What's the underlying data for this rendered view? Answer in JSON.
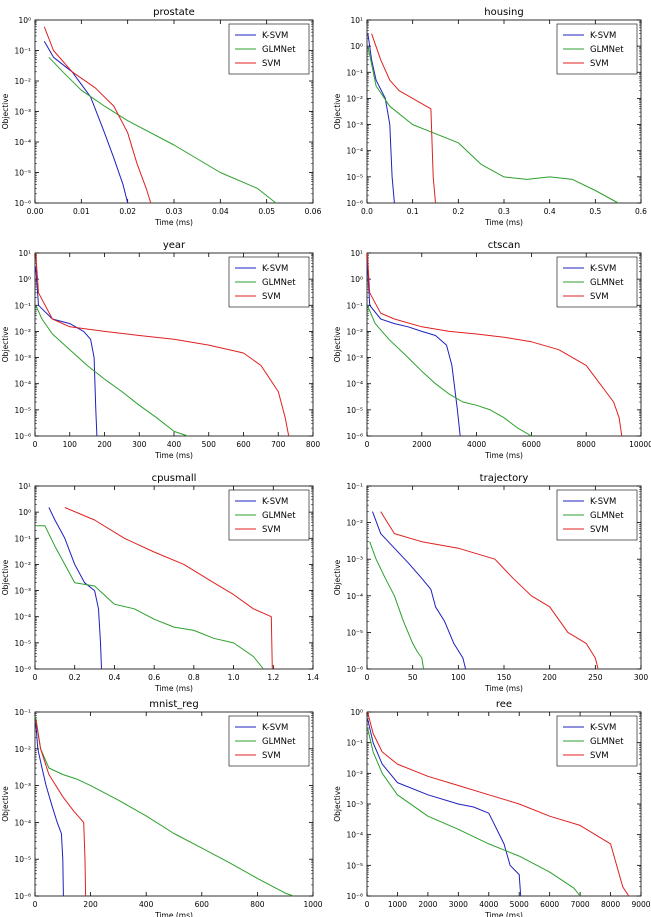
{
  "chart_data": [
    {
      "type": "line",
      "title": "prostate",
      "xlabel": "Time (ms)",
      "ylabel": "Objective",
      "xlim": [
        0,
        0.06
      ],
      "xticks": [
        0,
        0.01,
        0.02,
        0.03,
        0.04,
        0.05,
        0.06
      ],
      "xtick_labels": [
        "0.00",
        "0.01",
        "0.02",
        "0.03",
        "0.04",
        "0.05",
        "0.06"
      ],
      "yscale": "log",
      "ylim_exp": [
        -6,
        0
      ],
      "legend": [
        "K-SVM",
        "GLMNet",
        "SVM"
      ],
      "legend_position": "top-right",
      "series": [
        {
          "name": "K-SVM",
          "color": "#1f1fbf",
          "x": [
            0.002,
            0.004,
            0.008,
            0.012,
            0.015,
            0.017,
            0.019,
            0.02
          ],
          "y": [
            0.2,
            0.06,
            0.02,
            0.003,
            0.0002,
            3e-05,
            4e-06,
            1e-06
          ]
        },
        {
          "name": "GLMNet",
          "color": "#2ca02c",
          "x": [
            0.003,
            0.006,
            0.01,
            0.015,
            0.02,
            0.03,
            0.04,
            0.048,
            0.052
          ],
          "y": [
            0.06,
            0.02,
            0.005,
            0.0015,
            0.0005,
            8e-05,
            1e-05,
            3e-06,
            1e-06
          ]
        },
        {
          "name": "SVM",
          "color": "#e02020",
          "x": [
            0.002,
            0.004,
            0.008,
            0.013,
            0.017,
            0.02,
            0.022,
            0.024,
            0.025
          ],
          "y": [
            0.6,
            0.1,
            0.02,
            0.006,
            0.0015,
            0.0002,
            2e-05,
            3e-06,
            1e-06
          ]
        }
      ]
    },
    {
      "type": "line",
      "title": "housing",
      "xlabel": "Time (ms)",
      "ylabel": "Objective",
      "xlim": [
        0,
        0.6
      ],
      "xticks": [
        0,
        0.1,
        0.2,
        0.3,
        0.4,
        0.5,
        0.6
      ],
      "xtick_labels": [
        "0.0",
        "0.1",
        "0.2",
        "0.3",
        "0.4",
        "0.5",
        "0.6"
      ],
      "yscale": "log",
      "ylim_exp": [
        -6,
        1
      ],
      "legend": [
        "K-SVM",
        "GLMNet",
        "SVM"
      ],
      "legend_position": "top-right",
      "series": [
        {
          "name": "K-SVM",
          "color": "#1f1fbf",
          "x": [
            0.002,
            0.01,
            0.02,
            0.04,
            0.05,
            0.055,
            0.06
          ],
          "y": [
            3,
            0.3,
            0.05,
            0.01,
            0.001,
            1e-05,
            1e-06
          ]
        },
        {
          "name": "GLMNet",
          "color": "#2ca02c",
          "x": [
            0.002,
            0.02,
            0.05,
            0.1,
            0.2,
            0.25,
            0.3,
            0.35,
            0.4,
            0.45,
            0.5,
            0.55
          ],
          "y": [
            1,
            0.03,
            0.005,
            0.001,
            0.0002,
            3e-05,
            1e-05,
            8e-06,
            1e-05,
            8e-06,
            3e-06,
            1e-06
          ]
        },
        {
          "name": "SVM",
          "color": "#e02020",
          "x": [
            0.01,
            0.03,
            0.05,
            0.07,
            0.1,
            0.13,
            0.14,
            0.145,
            0.15
          ],
          "y": [
            3,
            0.3,
            0.05,
            0.02,
            0.01,
            0.005,
            0.004,
            1e-05,
            1e-06
          ]
        }
      ]
    },
    {
      "type": "line",
      "title": "year",
      "xlabel": "Time (ms)",
      "ylabel": "Objective",
      "xlim": [
        0,
        800
      ],
      "xticks": [
        0,
        100,
        200,
        300,
        400,
        500,
        600,
        700,
        800
      ],
      "xtick_labels": [
        "0",
        "100",
        "200",
        "300",
        "400",
        "500",
        "600",
        "700",
        "800"
      ],
      "yscale": "log",
      "ylim_exp": [
        -6,
        1
      ],
      "legend": [
        "K-SVM",
        "GLMNet",
        "SVM"
      ],
      "legend_position": "top-right",
      "series": [
        {
          "name": "K-SVM",
          "color": "#1f1fbf",
          "x": [
            2,
            10,
            50,
            100,
            140,
            160,
            170,
            175,
            178
          ],
          "y": [
            3,
            0.1,
            0.03,
            0.02,
            0.01,
            0.005,
            0.001,
            1e-05,
            1e-06
          ]
        },
        {
          "name": "GLMNet",
          "color": "#2ca02c",
          "x": [
            2,
            20,
            50,
            100,
            150,
            200,
            250,
            300,
            350,
            400,
            440
          ],
          "y": [
            0.1,
            0.03,
            0.008,
            0.002,
            0.0005,
            0.00015,
            5e-05,
            1.5e-05,
            5e-06,
            1.5e-06,
            1e-06
          ]
        },
        {
          "name": "SVM",
          "color": "#e02020",
          "x": [
            2,
            10,
            50,
            100,
            200,
            300,
            400,
            500,
            600,
            650,
            700,
            720,
            730
          ],
          "y": [
            10,
            0.3,
            0.03,
            0.015,
            0.01,
            0.007,
            0.005,
            0.003,
            0.0015,
            0.0005,
            5e-05,
            5e-06,
            1e-06
          ]
        }
      ]
    },
    {
      "type": "line",
      "title": "ctscan",
      "xlabel": "Time (ms)",
      "ylabel": "Objective",
      "xlim": [
        0,
        10000
      ],
      "xticks": [
        0,
        2000,
        4000,
        6000,
        8000,
        10000
      ],
      "xtick_labels": [
        "0",
        "2000",
        "4000",
        "6000",
        "8000",
        "10000"
      ],
      "yscale": "log",
      "ylim_exp": [
        -6,
        1
      ],
      "legend": [
        "K-SVM",
        "GLMNet",
        "SVM"
      ],
      "legend_position": "top-right",
      "series": [
        {
          "name": "K-SVM",
          "color": "#1f1fbf",
          "x": [
            10,
            100,
            500,
            1000,
            1500,
            2000,
            2500,
            2900,
            3100,
            3300,
            3400
          ],
          "y": [
            5,
            0.1,
            0.03,
            0.02,
            0.015,
            0.01,
            0.007,
            0.003,
            0.0005,
            1e-05,
            1e-06
          ]
        },
        {
          "name": "GLMNet",
          "color": "#2ca02c",
          "x": [
            10,
            300,
            800,
            1500,
            2000,
            2500,
            3000,
            3500,
            4000,
            4500,
            5000,
            5500,
            6000
          ],
          "y": [
            0.1,
            0.02,
            0.005,
            0.001,
            0.0003,
            0.0001,
            4e-05,
            2e-05,
            1.5e-05,
            1e-05,
            5e-06,
            2e-06,
            1e-06
          ]
        },
        {
          "name": "SVM",
          "color": "#e02020",
          "x": [
            10,
            100,
            500,
            1000,
            2000,
            3000,
            4000,
            5000,
            6000,
            7000,
            8000,
            8500,
            9000,
            9200,
            9300
          ],
          "y": [
            10,
            0.3,
            0.05,
            0.03,
            0.015,
            0.01,
            0.008,
            0.006,
            0.004,
            0.002,
            0.0005,
            0.0001,
            2e-05,
            5e-06,
            1e-06
          ]
        }
      ]
    },
    {
      "type": "line",
      "title": "cpusmall",
      "xlabel": "Time (ms)",
      "ylabel": "Objective",
      "xlim": [
        0,
        1.4
      ],
      "xticks": [
        0,
        0.2,
        0.4,
        0.6,
        0.8,
        1.0,
        1.2,
        1.4
      ],
      "xtick_labels": [
        "0",
        "0.2",
        "0.4",
        "0.6",
        "0.8",
        "1.0",
        "1.2",
        "1.4"
      ],
      "yscale": "log",
      "ylim_exp": [
        -6,
        1
      ],
      "legend": [
        "K-SVM",
        "GLMNet",
        "SVM"
      ],
      "legend_position": "top-right",
      "series": [
        {
          "name": "K-SVM",
          "color": "#1f1fbf",
          "x": [
            0.07,
            0.1,
            0.15,
            0.2,
            0.25,
            0.3,
            0.32,
            0.33,
            0.335
          ],
          "y": [
            1.5,
            0.5,
            0.1,
            0.01,
            0.002,
            0.001,
            0.0002,
            1e-05,
            1e-06
          ]
        },
        {
          "name": "GLMNet",
          "color": "#2ca02c",
          "x": [
            0.01,
            0.05,
            0.1,
            0.15,
            0.2,
            0.3,
            0.4,
            0.5,
            0.6,
            0.7,
            0.8,
            0.9,
            1.0,
            1.1,
            1.15
          ],
          "y": [
            0.3,
            0.3,
            0.05,
            0.01,
            0.002,
            0.0015,
            0.0003,
            0.0002,
            8e-05,
            4e-05,
            3e-05,
            1.5e-05,
            1e-05,
            3e-06,
            1e-06
          ]
        },
        {
          "name": "SVM",
          "color": "#e02020",
          "x": [
            0.15,
            0.3,
            0.45,
            0.6,
            0.75,
            0.9,
            1.0,
            1.1,
            1.19,
            1.195
          ],
          "y": [
            1.5,
            0.5,
            0.1,
            0.03,
            0.01,
            0.002,
            0.0007,
            0.0002,
            0.0001,
            1e-06
          ]
        }
      ]
    },
    {
      "type": "line",
      "title": "trajectory",
      "xlabel": "Time (ms)",
      "ylabel": "Objective",
      "xlim": [
        0,
        300
      ],
      "xticks": [
        0,
        50,
        100,
        150,
        200,
        250,
        300
      ],
      "xtick_labels": [
        "0",
        "50",
        "100",
        "150",
        "200",
        "250",
        "300"
      ],
      "yscale": "log",
      "ylim_exp": [
        -6,
        -1
      ],
      "legend": [
        "K-SVM",
        "GLMNet",
        "SVM"
      ],
      "legend_position": "top-right",
      "series": [
        {
          "name": "K-SVM",
          "color": "#1f1fbf",
          "x": [
            6,
            15,
            30,
            45,
            60,
            70,
            75,
            85,
            95,
            105,
            108
          ],
          "y": [
            0.02,
            0.005,
            0.002,
            0.0008,
            0.0003,
            0.00015,
            5e-05,
            2e-05,
            5e-06,
            2e-06,
            1e-06
          ]
        },
        {
          "name": "GLMNet",
          "color": "#2ca02c",
          "x": [
            3,
            10,
            20,
            30,
            40,
            50,
            55,
            60,
            62
          ],
          "y": [
            0.003,
            0.001,
            0.0003,
            0.0001,
            2e-05,
            5e-06,
            3e-06,
            2e-06,
            1e-06
          ]
        },
        {
          "name": "SVM",
          "color": "#e02020",
          "x": [
            15,
            30,
            60,
            100,
            140,
            160,
            180,
            200,
            220,
            240,
            250,
            253
          ],
          "y": [
            0.02,
            0.005,
            0.003,
            0.002,
            0.001,
            0.0003,
            0.0001,
            5e-05,
            1e-05,
            5e-06,
            2e-06,
            1e-06
          ]
        }
      ]
    },
    {
      "type": "line",
      "title": "mnist_reg",
      "xlabel": "Time (ms)",
      "ylabel": "Objective",
      "xlim": [
        0,
        1000
      ],
      "xticks": [
        0,
        200,
        400,
        600,
        800,
        1000
      ],
      "xtick_labels": [
        "0",
        "200",
        "400",
        "600",
        "800",
        "1000"
      ],
      "yscale": "log",
      "ylim_exp": [
        -6,
        -1
      ],
      "legend": [
        "K-SVM",
        "GLMNet",
        "SVM"
      ],
      "legend_position": "top-right",
      "series": [
        {
          "name": "K-SVM",
          "color": "#1f1fbf",
          "x": [
            3,
            10,
            25,
            40,
            60,
            80,
            95,
            100,
            102
          ],
          "y": [
            0.05,
            0.01,
            0.003,
            0.001,
            0.0003,
            0.0001,
            5e-05,
            1e-05,
            1e-06
          ]
        },
        {
          "name": "GLMNet",
          "color": "#2ca02c",
          "x": [
            3,
            20,
            50,
            100,
            150,
            200,
            300,
            400,
            500,
            600,
            700,
            800,
            900,
            930
          ],
          "y": [
            0.07,
            0.01,
            0.003,
            0.002,
            0.0015,
            0.001,
            0.0004,
            0.00015,
            5e-05,
            2e-05,
            8e-06,
            3e-06,
            1.2e-06,
            1e-06
          ]
        },
        {
          "name": "SVM",
          "color": "#e02020",
          "x": [
            3,
            20,
            50,
            100,
            140,
            175,
            180,
            182
          ],
          "y": [
            0.06,
            0.01,
            0.002,
            0.0005,
            0.0002,
            0.0001,
            1e-05,
            1e-06
          ]
        }
      ]
    },
    {
      "type": "line",
      "title": "ree",
      "xlabel": "Time (ms)",
      "ylabel": "Objective",
      "xlim": [
        0,
        9000
      ],
      "xticks": [
        0,
        1000,
        2000,
        3000,
        4000,
        5000,
        6000,
        7000,
        8000,
        9000
      ],
      "xtick_labels": [
        "0",
        "1000",
        "2000",
        "3000",
        "4000",
        "5000",
        "6000",
        "7000",
        "8000",
        "9000"
      ],
      "yscale": "log",
      "ylim_exp": [
        -6,
        0
      ],
      "legend": [
        "K-SVM",
        "GLMNet",
        "SVM"
      ],
      "legend_position": "top-right",
      "series": [
        {
          "name": "K-SVM",
          "color": "#1f1fbf",
          "x": [
            20,
            200,
            500,
            1000,
            2000,
            3000,
            3500,
            4000,
            4500,
            4700,
            5000,
            5050
          ],
          "y": [
            0.6,
            0.1,
            0.02,
            0.005,
            0.002,
            0.001,
            0.0008,
            0.0005,
            5e-05,
            1e-05,
            5e-06,
            1e-06
          ]
        },
        {
          "name": "GLMNet",
          "color": "#2ca02c",
          "x": [
            20,
            200,
            500,
            1000,
            2000,
            3000,
            4000,
            5000,
            6000,
            6800,
            7000
          ],
          "y": [
            0.3,
            0.05,
            0.01,
            0.002,
            0.0004,
            0.00015,
            5e-05,
            2e-05,
            6e-06,
            1.8e-06,
            1e-06
          ]
        },
        {
          "name": "SVM",
          "color": "#e02020",
          "x": [
            20,
            200,
            500,
            1000,
            2000,
            3000,
            4000,
            5000,
            6000,
            7000,
            8000,
            8400,
            8600
          ],
          "y": [
            1,
            0.2,
            0.05,
            0.02,
            0.008,
            0.004,
            0.002,
            0.001,
            0.0004,
            0.0002,
            5e-05,
            2e-06,
            1e-06
          ]
        }
      ]
    }
  ]
}
